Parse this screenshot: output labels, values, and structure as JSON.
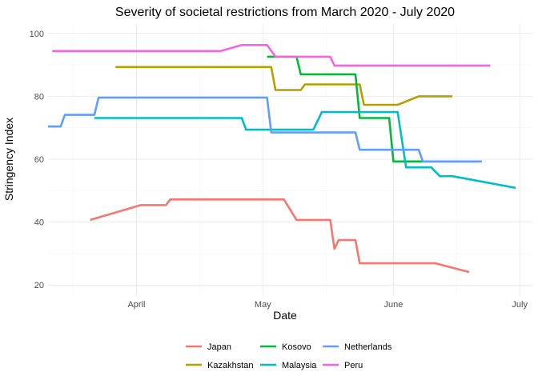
{
  "chart_data": {
    "type": "line",
    "title": "Severity of societal restrictions from March 2020 - July 2020",
    "xlabel": "Date",
    "ylabel": "Stringency Index",
    "xlim": [
      "2020-03-11",
      "2020-07-04"
    ],
    "ylim": [
      16.5,
      103
    ],
    "grid": true,
    "legend_position": "bottom",
    "x_ticks": [
      {
        "date": "2020-04-01",
        "label": "April"
      },
      {
        "date": "2020-05-01",
        "label": "May"
      },
      {
        "date": "2020-06-01",
        "label": "June"
      },
      {
        "date": "2020-07-01",
        "label": "July"
      }
    ],
    "y_ticks": [
      20,
      40,
      60,
      80,
      100
    ],
    "series": [
      {
        "name": "Japan",
        "color": "#F8766D",
        "points": [
          [
            "2020-03-21",
            40.7
          ],
          [
            "2020-04-02",
            45.4
          ],
          [
            "2020-04-08",
            45.4
          ],
          [
            "2020-04-09",
            47.2
          ],
          [
            "2020-05-06",
            47.2
          ],
          [
            "2020-05-09",
            40.7
          ],
          [
            "2020-05-17",
            40.7
          ],
          [
            "2020-05-18",
            31.5
          ],
          [
            "2020-05-19",
            34.3
          ],
          [
            "2020-05-23",
            34.3
          ],
          [
            "2020-05-24",
            26.9
          ],
          [
            "2020-06-11",
            26.9
          ],
          [
            "2020-06-19",
            24.1
          ]
        ]
      },
      {
        "name": "Kazakhstan",
        "color": "#B79F00",
        "points": [
          [
            "2020-03-27",
            89.3
          ],
          [
            "2020-05-03",
            89.3
          ],
          [
            "2020-05-04",
            82.0
          ],
          [
            "2020-05-10",
            82.0
          ],
          [
            "2020-05-11",
            83.8
          ],
          [
            "2020-05-24",
            83.8
          ],
          [
            "2020-05-25",
            77.3
          ],
          [
            "2020-06-02",
            77.3
          ],
          [
            "2020-06-07",
            80.0
          ],
          [
            "2020-06-15",
            80.0
          ]
        ]
      },
      {
        "name": "Kosovo",
        "color": "#00BA38",
        "points": [
          [
            "2020-05-02",
            92.6
          ],
          [
            "2020-05-09",
            92.6
          ],
          [
            "2020-05-10",
            87.0
          ],
          [
            "2020-05-23",
            87.0
          ],
          [
            "2020-05-24",
            73.1
          ],
          [
            "2020-05-31",
            73.1
          ],
          [
            "2020-06-01",
            59.3
          ],
          [
            "2020-06-21",
            59.3
          ]
        ]
      },
      {
        "name": "Malaysia",
        "color": "#00BFC4",
        "points": [
          [
            "2020-03-22",
            73.1
          ],
          [
            "2020-04-26",
            73.1
          ],
          [
            "2020-04-27",
            69.4
          ],
          [
            "2020-05-13",
            69.4
          ],
          [
            "2020-05-15",
            75.0
          ],
          [
            "2020-06-02",
            75.0
          ],
          [
            "2020-06-04",
            57.4
          ],
          [
            "2020-06-10",
            57.4
          ],
          [
            "2020-06-12",
            54.6
          ],
          [
            "2020-06-15",
            54.6
          ],
          [
            "2020-06-30",
            50.9
          ]
        ]
      },
      {
        "name": "Netherlands",
        "color": "#619CFF",
        "points": [
          [
            "2020-03-11",
            70.4
          ],
          [
            "2020-03-14",
            70.4
          ],
          [
            "2020-03-15",
            74.1
          ],
          [
            "2020-03-22",
            74.1
          ],
          [
            "2020-03-23",
            79.6
          ],
          [
            "2020-05-02",
            79.6
          ],
          [
            "2020-05-03",
            68.5
          ],
          [
            "2020-05-23",
            68.5
          ],
          [
            "2020-05-24",
            63.0
          ],
          [
            "2020-06-07",
            63.0
          ],
          [
            "2020-06-08",
            59.3
          ],
          [
            "2020-06-22",
            59.3
          ]
        ]
      },
      {
        "name": "Peru",
        "color": "#F564E3",
        "points": [
          [
            "2020-03-12",
            94.4
          ],
          [
            "2020-04-21",
            94.4
          ],
          [
            "2020-04-26",
            96.3
          ],
          [
            "2020-05-02",
            96.3
          ],
          [
            "2020-05-04",
            92.6
          ],
          [
            "2020-05-17",
            92.6
          ],
          [
            "2020-05-18",
            89.8
          ],
          [
            "2020-06-24",
            89.8
          ]
        ]
      }
    ]
  }
}
